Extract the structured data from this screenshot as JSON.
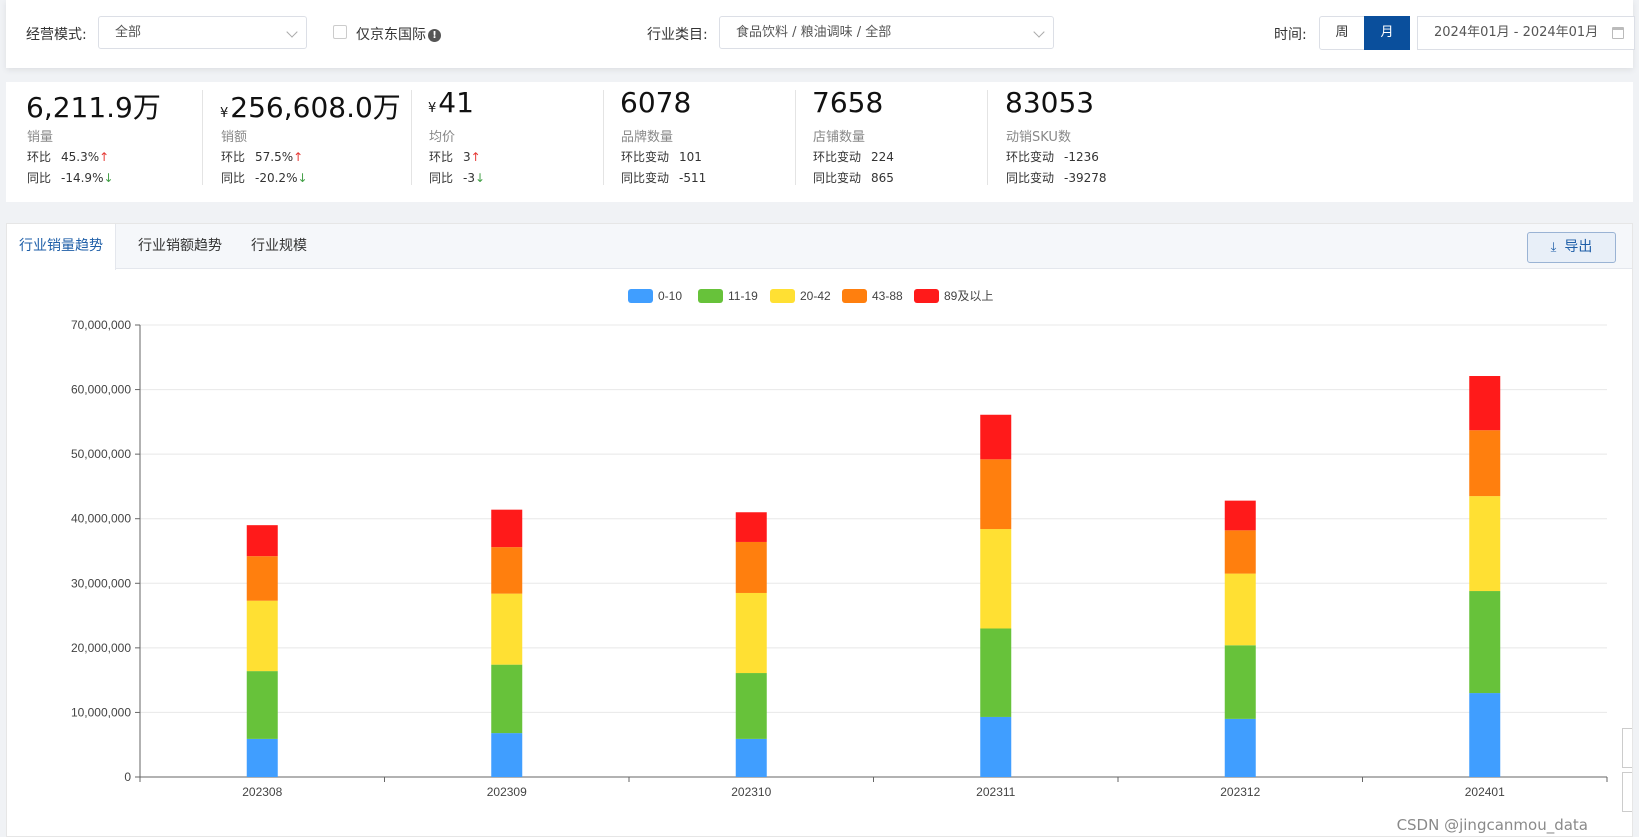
{
  "filters": {
    "mode_label": "经营模式:",
    "mode_value": "全部",
    "jd_intl_label": "仅京东国际",
    "jd_intl_info": "!",
    "category_label": "行业类目:",
    "category_value": "食品饮料 / 粮油调味 / 全部",
    "time_label": "时间:",
    "week_label": "周",
    "month_label": "月",
    "date_range": "2024年01月 - 2024年01月"
  },
  "stats": [
    {
      "value": "6,211.9万",
      "currency": "",
      "name": "销量",
      "r1_label": "环比",
      "r1_value": "45.3%",
      "r1_arrow": "↑",
      "r2_label": "同比",
      "r2_value": "-14.9%",
      "r2_arrow": "↓"
    },
    {
      "value": "256,608.0万",
      "currency": "¥",
      "name": "销额",
      "r1_label": "环比",
      "r1_value": "57.5%",
      "r1_arrow": "↑",
      "r2_label": "同比",
      "r2_value": "-20.2%",
      "r2_arrow": "↓"
    },
    {
      "value": "41",
      "currency": "¥",
      "name": "均价",
      "r1_label": "环比",
      "r1_value": "3",
      "r1_arrow": "↑",
      "r2_label": "同比",
      "r2_value": "-3",
      "r2_arrow": "↓"
    },
    {
      "value": "6078",
      "currency": "",
      "name": "品牌数量",
      "r1_label": "环比变动",
      "r1_value": "101",
      "r1_arrow": "",
      "r2_label": "同比变动",
      "r2_value": "-511",
      "r2_arrow": ""
    },
    {
      "value": "7658",
      "currency": "",
      "name": "店铺数量",
      "r1_label": "环比变动",
      "r1_value": "224",
      "r1_arrow": "",
      "r2_label": "同比变动",
      "r2_value": "865",
      "r2_arrow": ""
    },
    {
      "value": "83053",
      "currency": "",
      "name": "动销SKU数",
      "r1_label": "环比变动",
      "r1_value": "-1236",
      "r1_arrow": "",
      "r2_label": "同比变动",
      "r2_value": "-39278",
      "r2_arrow": ""
    }
  ],
  "tabs": [
    {
      "label": "行业销量趋势",
      "active": true
    },
    {
      "label": "行业销额趋势",
      "active": false
    },
    {
      "label": "行业规模",
      "active": false
    }
  ],
  "export_label": "导出",
  "watermark": "CSDN @jingcanmou_data",
  "chart_data": {
    "type": "bar",
    "stacked": true,
    "categories": [
      "202308",
      "202309",
      "202310",
      "202311",
      "202312",
      "202401"
    ],
    "series": [
      {
        "name": "0-10",
        "color": "#409eff",
        "values": [
          5900000,
          6800000,
          5900000,
          9300000,
          9000000,
          13000000
        ]
      },
      {
        "name": "11-19",
        "color": "#67c23a",
        "values": [
          10500000,
          10600000,
          10200000,
          13700000,
          11400000,
          15800000
        ]
      },
      {
        "name": "20-42",
        "color": "#ffe033",
        "values": [
          10900000,
          11000000,
          12400000,
          15400000,
          11100000,
          14700000
        ]
      },
      {
        "name": "43-88",
        "color": "#ff7f0e",
        "values": [
          6900000,
          7200000,
          7900000,
          10800000,
          6700000,
          10200000
        ]
      },
      {
        "name": "89及以上",
        "color": "#ff1a1a",
        "values": [
          4800000,
          5800000,
          4600000,
          6900000,
          4600000,
          8400000
        ]
      }
    ],
    "yticks": [
      "0",
      "10,000,000",
      "20,000,000",
      "30,000,000",
      "40,000,000",
      "50,000,000",
      "60,000,000",
      "70,000,000"
    ],
    "ylim": [
      0,
      70000000
    ],
    "legend_position": "top-center",
    "grid": true
  }
}
